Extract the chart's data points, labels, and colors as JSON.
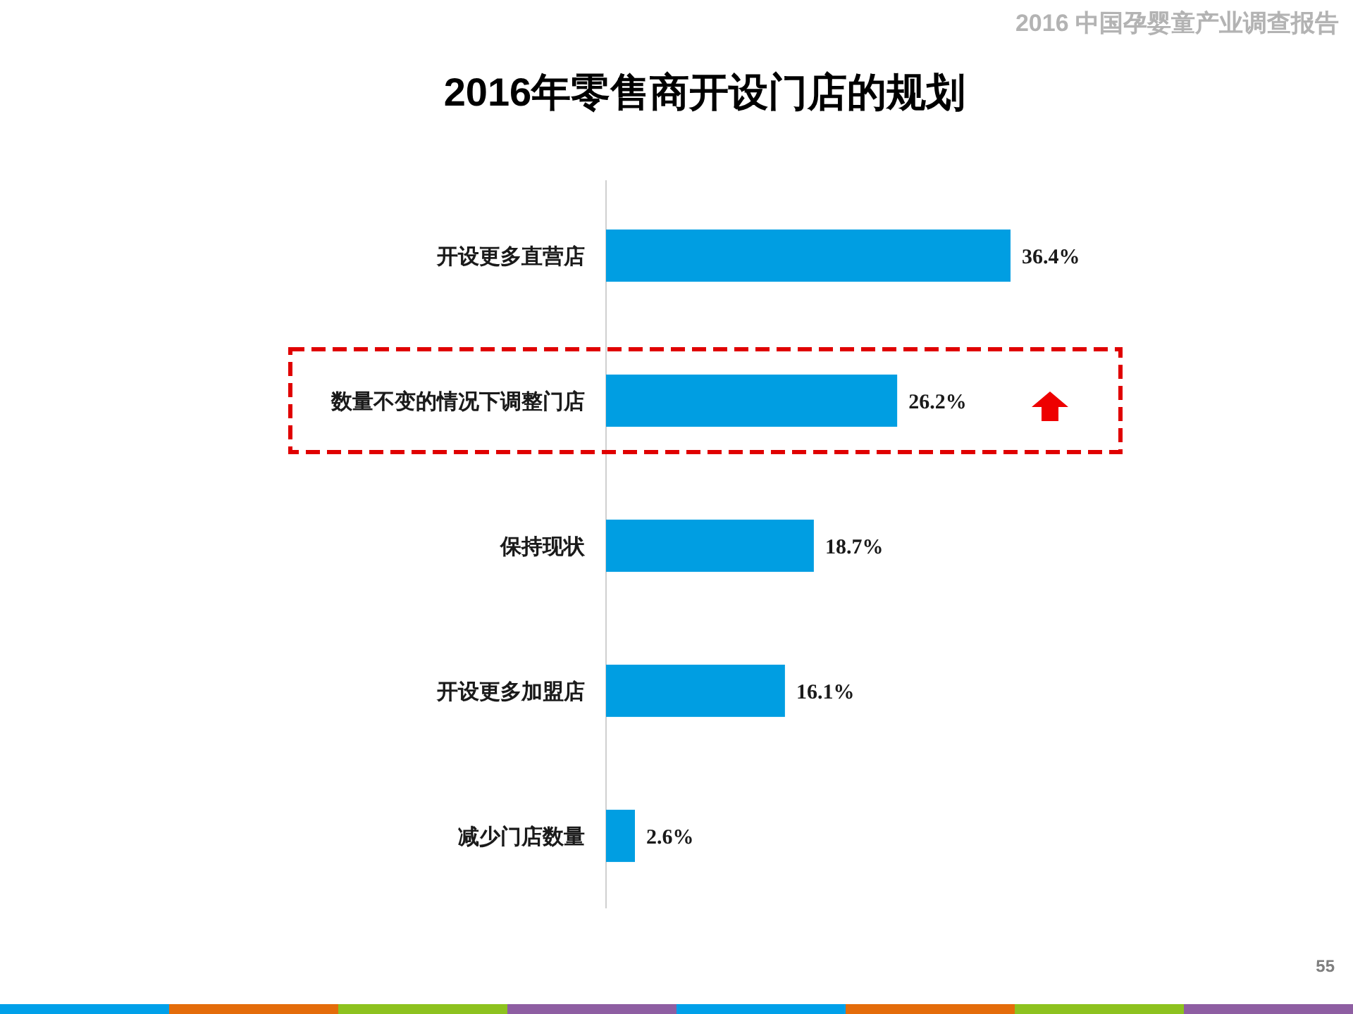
{
  "chart_data": {
    "type": "bar",
    "orientation": "horizontal",
    "title": "2016年零售商开设门店的规划",
    "categories": [
      "开设更多直营店",
      "数量不变的情况下调整门店",
      "保持现状",
      "开设更多加盟店",
      "减少门店数量"
    ],
    "values": [
      36.4,
      26.2,
      18.7,
      16.1,
      2.6
    ],
    "color": "#009ee2",
    "value_labels": [
      "36.4%",
      "26.2%",
      "18.7%",
      "16.1%",
      "2.6%"
    ],
    "annotations": [
      "2016 中国孕婴童产业调查报告",
      "55"
    ]
  }
}
